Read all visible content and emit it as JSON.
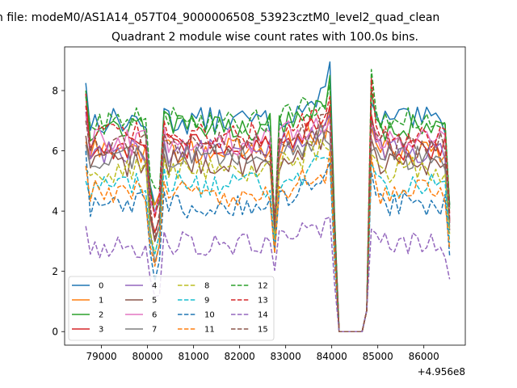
{
  "figure": {
    "suptitle": "n file: modeM0/AS1A14_057T04_9000006508_53923cztM0_level2_quad_clean",
    "title": "Quadrant 2 module wise count rates with 100.0s bins.",
    "offset_label": "+4.956e8"
  },
  "chart_data": {
    "type": "line",
    "title": "Quadrant 2 module wise count rates with 100.0s bins.",
    "xlabel": "",
    "ylabel": "",
    "xlim": [
      78200,
      86900
    ],
    "ylim": [
      -0.45,
      9.45
    ],
    "x_offset": 495600000,
    "x_ticks": [
      79000,
      80000,
      81000,
      82000,
      83000,
      84000,
      85000,
      86000
    ],
    "x_tick_labels": [
      "79000",
      "80000",
      "81000",
      "82000",
      "83000",
      "84000",
      "85000",
      "86000"
    ],
    "y_ticks": [
      0,
      2,
      4,
      6,
      8
    ],
    "y_tick_labels": [
      "0",
      "2",
      "4",
      "6",
      "8"
    ],
    "x_start": 78660,
    "x_step": 100,
    "legend_position": "lower-left",
    "series": [
      {
        "name": "0",
        "color": "#1f77b4",
        "dash": "solid",
        "base": 7.0,
        "start": 8.25,
        "dip": 4.8,
        "low2": 3.4,
        "peak": 8.95,
        "after": 7.6
      },
      {
        "name": "1",
        "color": "#ff7f0e",
        "dash": "solid",
        "base": 6.0,
        "start": 6.3,
        "dip": 4.5,
        "low2": 3.9,
        "peak": 7.3,
        "after": 6.8
      },
      {
        "name": "2",
        "color": "#2ca02c",
        "dash": "solid",
        "base": 6.8,
        "start": 8.0,
        "dip": 4.7,
        "low2": 3.6,
        "peak": 8.5,
        "after": 8.0
      },
      {
        "name": "3",
        "color": "#d62728",
        "dash": "solid",
        "base": 6.1,
        "start": 7.9,
        "dip": 3.8,
        "low2": 3.5,
        "peak": 7.5,
        "after": 7.2
      },
      {
        "name": "4",
        "color": "#9467bd",
        "dash": "solid",
        "base": 6.0,
        "start": 7.3,
        "dip": 4.2,
        "low2": 3.5,
        "peak": 7.2,
        "after": 7.0
      },
      {
        "name": "5",
        "color": "#8c564b",
        "dash": "solid",
        "base": 5.6,
        "start": 6.5,
        "dip": 3.7,
        "low2": 3.3,
        "peak": 6.6,
        "after": 6.4
      },
      {
        "name": "6",
        "color": "#e377c2",
        "dash": "solid",
        "base": 6.3,
        "start": 7.2,
        "dip": 4.3,
        "low2": 3.5,
        "peak": 7.0,
        "after": 6.9
      },
      {
        "name": "7",
        "color": "#7f7f7f",
        "dash": "solid",
        "base": 5.8,
        "start": 6.2,
        "dip": 3.2,
        "low2": 3.4,
        "peak": 6.2,
        "after": 6.0
      },
      {
        "name": "8",
        "color": "#bcbd22",
        "dash": "dashed",
        "base": 5.4,
        "start": 5.4,
        "dip": 3.2,
        "low2": 3.0,
        "peak": 6.0,
        "after": 5.9
      },
      {
        "name": "9",
        "color": "#17becf",
        "dash": "dashed",
        "base": 4.9,
        "start": 5.0,
        "dip": 2.9,
        "low2": 2.8,
        "peak": 5.7,
        "after": 5.6
      },
      {
        "name": "10",
        "color": "#1f77b4",
        "dash": "dashed",
        "base": 4.2,
        "start": 6.0,
        "dip": 2.5,
        "low2": 2.6,
        "peak": 5.6,
        "after": 5.3
      },
      {
        "name": "11",
        "color": "#ff7f0e",
        "dash": "dashed",
        "base": 4.6,
        "start": 5.5,
        "dip": 2.7,
        "low2": 2.6,
        "peak": 6.0,
        "after": 5.8
      },
      {
        "name": "12",
        "color": "#2ca02c",
        "dash": "dashed",
        "base": 7.0,
        "start": 7.8,
        "dip": 5.0,
        "low2": 3.5,
        "peak": 8.2,
        "after": 8.7
      },
      {
        "name": "13",
        "color": "#d62728",
        "dash": "dashed",
        "base": 6.5,
        "start": 7.5,
        "dip": 4.5,
        "low2": 3.5,
        "peak": 7.8,
        "after": 8.4
      },
      {
        "name": "14",
        "color": "#9467bd",
        "dash": "dashed",
        "base": 2.9,
        "start": 3.5,
        "dip": 1.6,
        "low2": 2.1,
        "peak": 3.8,
        "after": 3.4
      },
      {
        "name": "15",
        "color": "#8c564b",
        "dash": "dashed",
        "base": 6.2,
        "start": 7.0,
        "dip": 4.0,
        "low2": 3.5,
        "peak": 7.3,
        "after": 7.0
      }
    ]
  }
}
